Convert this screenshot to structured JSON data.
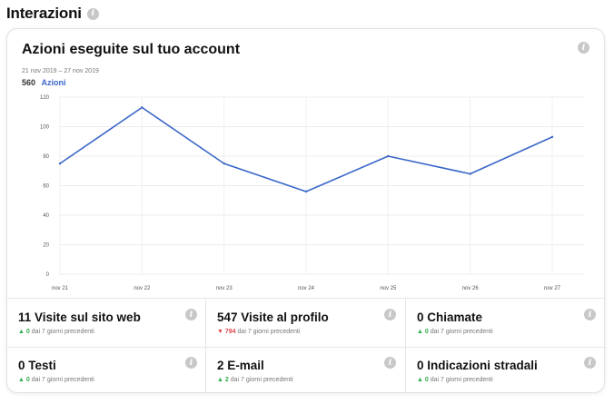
{
  "section": {
    "title": "Interazioni"
  },
  "card": {
    "title": "Azioni eseguite sul tuo account",
    "date_range": "21 nov 2019 – 27 nov 2019",
    "total_value": "560",
    "total_label": "Azioni"
  },
  "chart_data": {
    "type": "line",
    "categories": [
      "nov 21",
      "nov 22",
      "nov 23",
      "nov 24",
      "nov 25",
      "nov 26",
      "nov 27"
    ],
    "series": [
      {
        "name": "Azioni",
        "values": [
          75,
          113,
          75,
          56,
          80,
          68,
          93
        ]
      }
    ],
    "yticks": [
      0,
      20,
      40,
      60,
      80,
      100,
      120
    ],
    "ylim": [
      0,
      120
    ],
    "grid": true,
    "line_color": "#3b67c9"
  },
  "stats": [
    {
      "title": "11 Visite sul sito web",
      "direction": "up",
      "change": "0",
      "period": "dai 7 giorni precedenti"
    },
    {
      "title": "547 Visite al profilo",
      "direction": "down",
      "change": "794",
      "period": "dai 7 giorni precedenti"
    },
    {
      "title": "0 Chiamate",
      "direction": "up",
      "change": "0",
      "period": "dai 7 giorni precedenti"
    },
    {
      "title": "0 Testi",
      "direction": "up",
      "change": "0",
      "period": "dai 7 giorni precedenti"
    },
    {
      "title": "2 E-mail",
      "direction": "up",
      "change": "2",
      "period": "dai 7 giorni precedenti"
    },
    {
      "title": "0 Indicazioni stradali",
      "direction": "up",
      "change": "0",
      "period": "dai 7 giorni precedenti"
    }
  ],
  "icons": {
    "info": "info-icon",
    "up": "arrow-up-icon",
    "down": "arrow-down-icon"
  },
  "colors": {
    "accent": "#3b67c9",
    "positive": "#2eaa4a",
    "negative": "#e0474c"
  }
}
